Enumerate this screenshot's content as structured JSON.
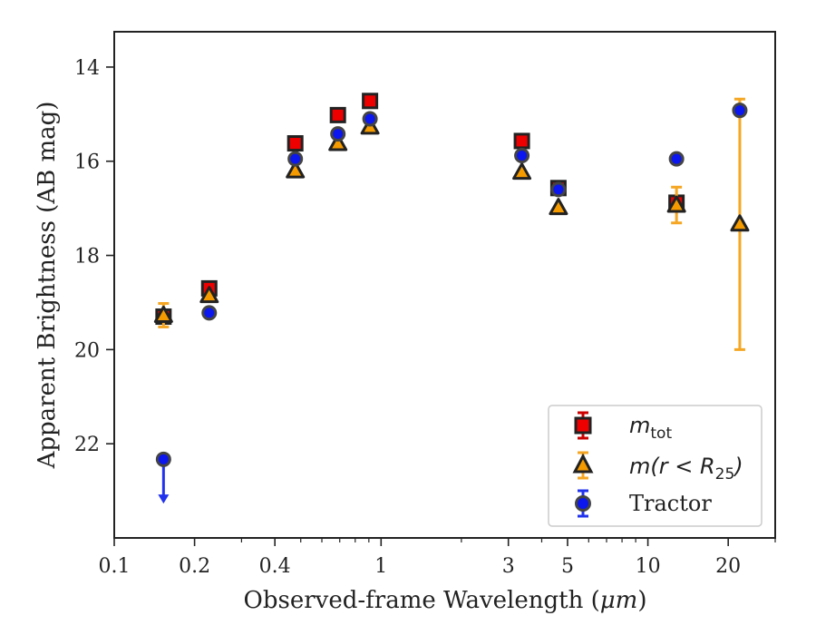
{
  "chart_data": {
    "type": "scatter",
    "xlabel_main": "Observed-frame Wavelength (",
    "xlabel_unit": "μm",
    "xlabel_end": ")",
    "ylabel": "Apparent Brightness (AB mag)",
    "x_scale": "log",
    "xlim": [
      0.1,
      30
    ],
    "ylim": [
      24.0,
      13.25
    ],
    "y_inverted": true,
    "grid": false,
    "legend_position": "lower-right",
    "x_ticks": [
      0.1,
      0.2,
      0.4,
      1,
      3,
      5,
      10,
      20
    ],
    "x_tick_labels": [
      "0.1",
      "0.2",
      "0.4",
      "1",
      "3",
      "5",
      "10",
      "20"
    ],
    "y_ticks": [
      14,
      16,
      18,
      20,
      22
    ],
    "y_tick_labels": [
      "14",
      "16",
      "18",
      "20",
      "22"
    ],
    "series": [
      {
        "name_base": "m",
        "name_sub": "tot",
        "marker": "square",
        "color": "#ee0000",
        "edge": "#222222",
        "errcolor": "#cc0000",
        "points": [
          {
            "x": 0.153,
            "y": 19.3
          },
          {
            "x": 0.227,
            "y": 18.7
          },
          {
            "x": 0.477,
            "y": 15.62
          },
          {
            "x": 0.689,
            "y": 15.02
          },
          {
            "x": 0.909,
            "y": 14.72
          },
          {
            "x": 3.37,
            "y": 15.57
          },
          {
            "x": 4.62,
            "y": 16.57
          },
          {
            "x": 12.8,
            "y": 16.88
          }
        ]
      },
      {
        "name_text": "m(r < R",
        "name_sub": "25",
        "name_close": ")",
        "marker": "triangle",
        "color": "#f59b00",
        "edge": "#222222",
        "errcolor": "#f5a623",
        "points": [
          {
            "x": 0.153,
            "y": 19.27,
            "yerr": 0.25
          },
          {
            "x": 0.227,
            "y": 18.85
          },
          {
            "x": 0.477,
            "y": 16.2
          },
          {
            "x": 0.689,
            "y": 15.62
          },
          {
            "x": 0.909,
            "y": 15.27
          },
          {
            "x": 3.37,
            "y": 16.23
          },
          {
            "x": 4.62,
            "y": 16.98
          },
          {
            "x": 12.8,
            "y": 16.93,
            "yerr": 0.38
          },
          {
            "x": 22.1,
            "y": 17.33,
            "yerr_low": 2.65,
            "yerr_high": 2.67
          }
        ]
      },
      {
        "name": "Tractor",
        "marker": "circle",
        "color": "#0b17ee",
        "edge": "#444444",
        "errcolor": "#2233ee",
        "points": [
          {
            "x": 0.153,
            "y": 22.33,
            "upper_limit": true,
            "arrow_to": 23.25
          },
          {
            "x": 0.227,
            "y": 19.22
          },
          {
            "x": 0.477,
            "y": 15.95
          },
          {
            "x": 0.689,
            "y": 15.42
          },
          {
            "x": 0.909,
            "y": 15.1
          },
          {
            "x": 3.37,
            "y": 15.88
          },
          {
            "x": 4.62,
            "y": 16.6
          },
          {
            "x": 12.8,
            "y": 15.95
          },
          {
            "x": 22.1,
            "y": 14.92
          }
        ]
      }
    ]
  }
}
